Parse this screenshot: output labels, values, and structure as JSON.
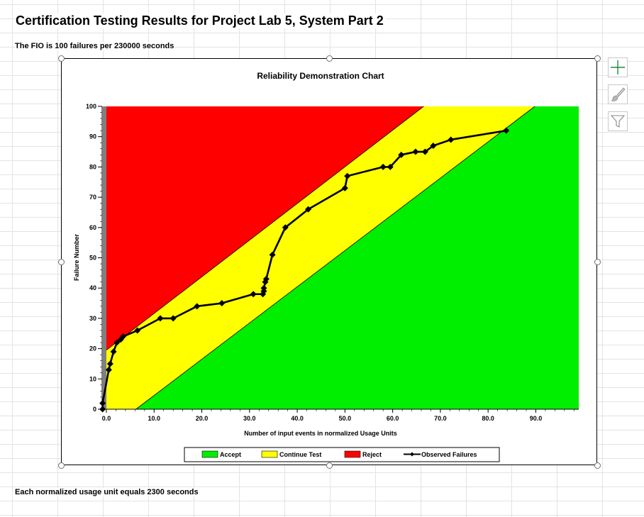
{
  "sheet": {
    "title": "Certification Testing Results for Project Lab 5, System Part 2",
    "fio_note": "The FIO is 100 failures per 230000 seconds",
    "footer_note": "Each normalized usage unit equals 2300 seconds"
  },
  "side_buttons": [
    {
      "name": "chart-elements",
      "icon": "plus-icon"
    },
    {
      "name": "chart-styles",
      "icon": "brush-icon"
    },
    {
      "name": "chart-filters",
      "icon": "funnel-icon"
    }
  ],
  "colors": {
    "accept": "#00ee00",
    "continue": "#ffff00",
    "reject": "#ff0000",
    "observed": "#000000",
    "plot_gap": "#808080"
  },
  "chart_data": {
    "type": "line",
    "title": "Reliability Demonstration Chart",
    "xlabel": "Number of input events in normalized Usage Units",
    "ylabel": "Failure Number",
    "xlim": [
      0,
      99
    ],
    "ylim": [
      0,
      100
    ],
    "x_ticks": [
      0,
      10,
      20,
      30,
      40,
      50,
      60,
      70,
      80,
      90
    ],
    "x_tick_labels": [
      "0.0",
      "10.0",
      "20.0",
      "30.0",
      "40.0",
      "50.0",
      "60.0",
      "70.0",
      "80.0",
      "90.0"
    ],
    "y_ticks": [
      0,
      10,
      20,
      30,
      40,
      50,
      60,
      70,
      80,
      90,
      100
    ],
    "y_tick_labels": [
      "0",
      "10",
      "20",
      "30",
      "40",
      "50",
      "60",
      "70",
      "80",
      "90",
      "100"
    ],
    "regions": [
      {
        "name": "Accept",
        "color": "#00ee00",
        "boundary": [
          [
            6.2,
            0
          ],
          [
            89.8,
            100
          ]
        ]
      },
      {
        "name": "Continue Test",
        "color": "#ffff00"
      },
      {
        "name": "Reject",
        "color": "#ff0000",
        "boundary": [
          [
            0,
            19.5
          ],
          [
            66.5,
            100
          ]
        ]
      }
    ],
    "series": [
      {
        "name": "Observed Failures",
        "x": [
          -0.8,
          -0.8,
          0.5,
          0.8,
          1.5,
          2.2,
          3.0,
          3.5,
          6.5,
          11.3,
          14.0,
          19.0,
          24.2,
          30.8,
          32.8,
          33.0,
          33.0,
          33.3,
          33.5,
          34.8,
          37.5,
          42.3,
          50.0,
          50.5,
          58.0,
          59.5,
          61.8,
          64.8,
          66.8,
          68.5,
          72.2,
          83.8
        ],
        "y": [
          0,
          2,
          13,
          15,
          19,
          22,
          23,
          24,
          26,
          30,
          30,
          34,
          35,
          38,
          38,
          39,
          40,
          42,
          43,
          51,
          60,
          66,
          73,
          77,
          80,
          80,
          84,
          85,
          85,
          87,
          89,
          92
        ]
      }
    ],
    "legend": {
      "position": "bottom",
      "entries": [
        {
          "label": "Accept",
          "type": "patch",
          "color": "#00ee00"
        },
        {
          "label": "Continue Test",
          "type": "patch",
          "color": "#ffff00"
        },
        {
          "label": "Reject",
          "type": "patch",
          "color": "#ff0000"
        },
        {
          "label": "Observed Failures",
          "type": "line",
          "color": "#000000"
        }
      ]
    },
    "grid": false
  }
}
